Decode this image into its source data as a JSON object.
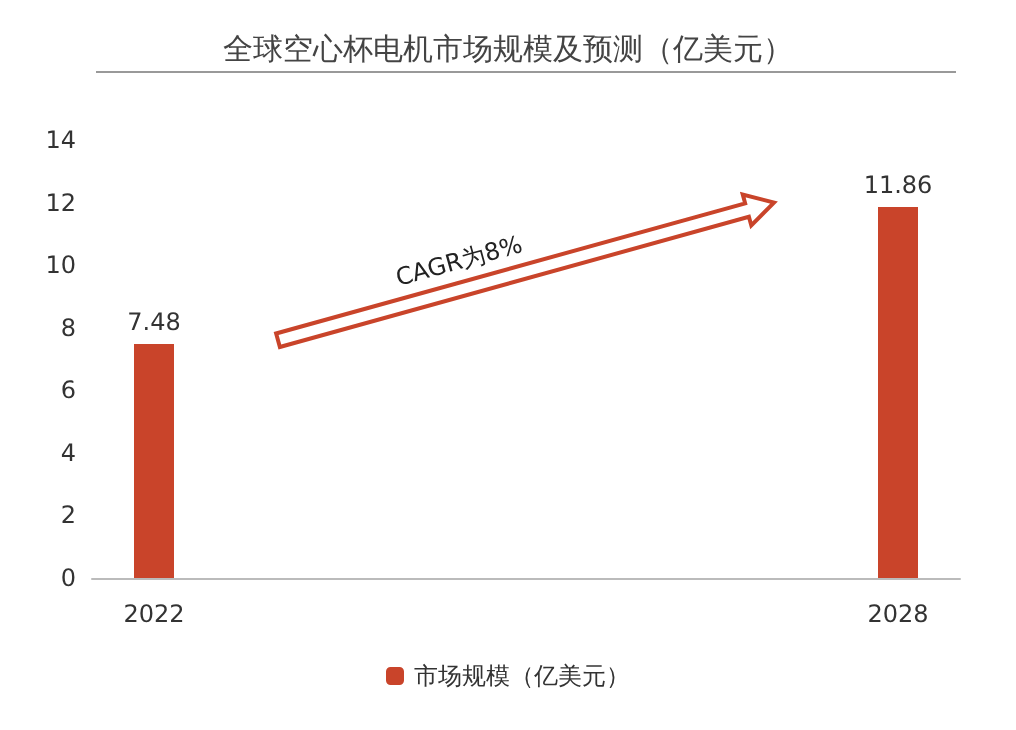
{
  "chart_data": {
    "type": "bar",
    "title": "全球空心杯电机市场规模及预测（亿美元）",
    "categories": [
      "2022",
      null,
      null,
      null,
      null,
      null,
      "2028"
    ],
    "series": [
      {
        "name": "市场规模（亿美元）",
        "color": "#c9442a",
        "values": [
          7.48,
          null,
          null,
          null,
          null,
          null,
          11.86
        ]
      }
    ],
    "ylim": [
      0,
      14
    ],
    "yticks": [
      0,
      2,
      4,
      6,
      8,
      10,
      12,
      14
    ],
    "grid": false,
    "legend": "bottom",
    "data_labels": true,
    "annotations": [
      "CAGR为8%"
    ]
  }
}
